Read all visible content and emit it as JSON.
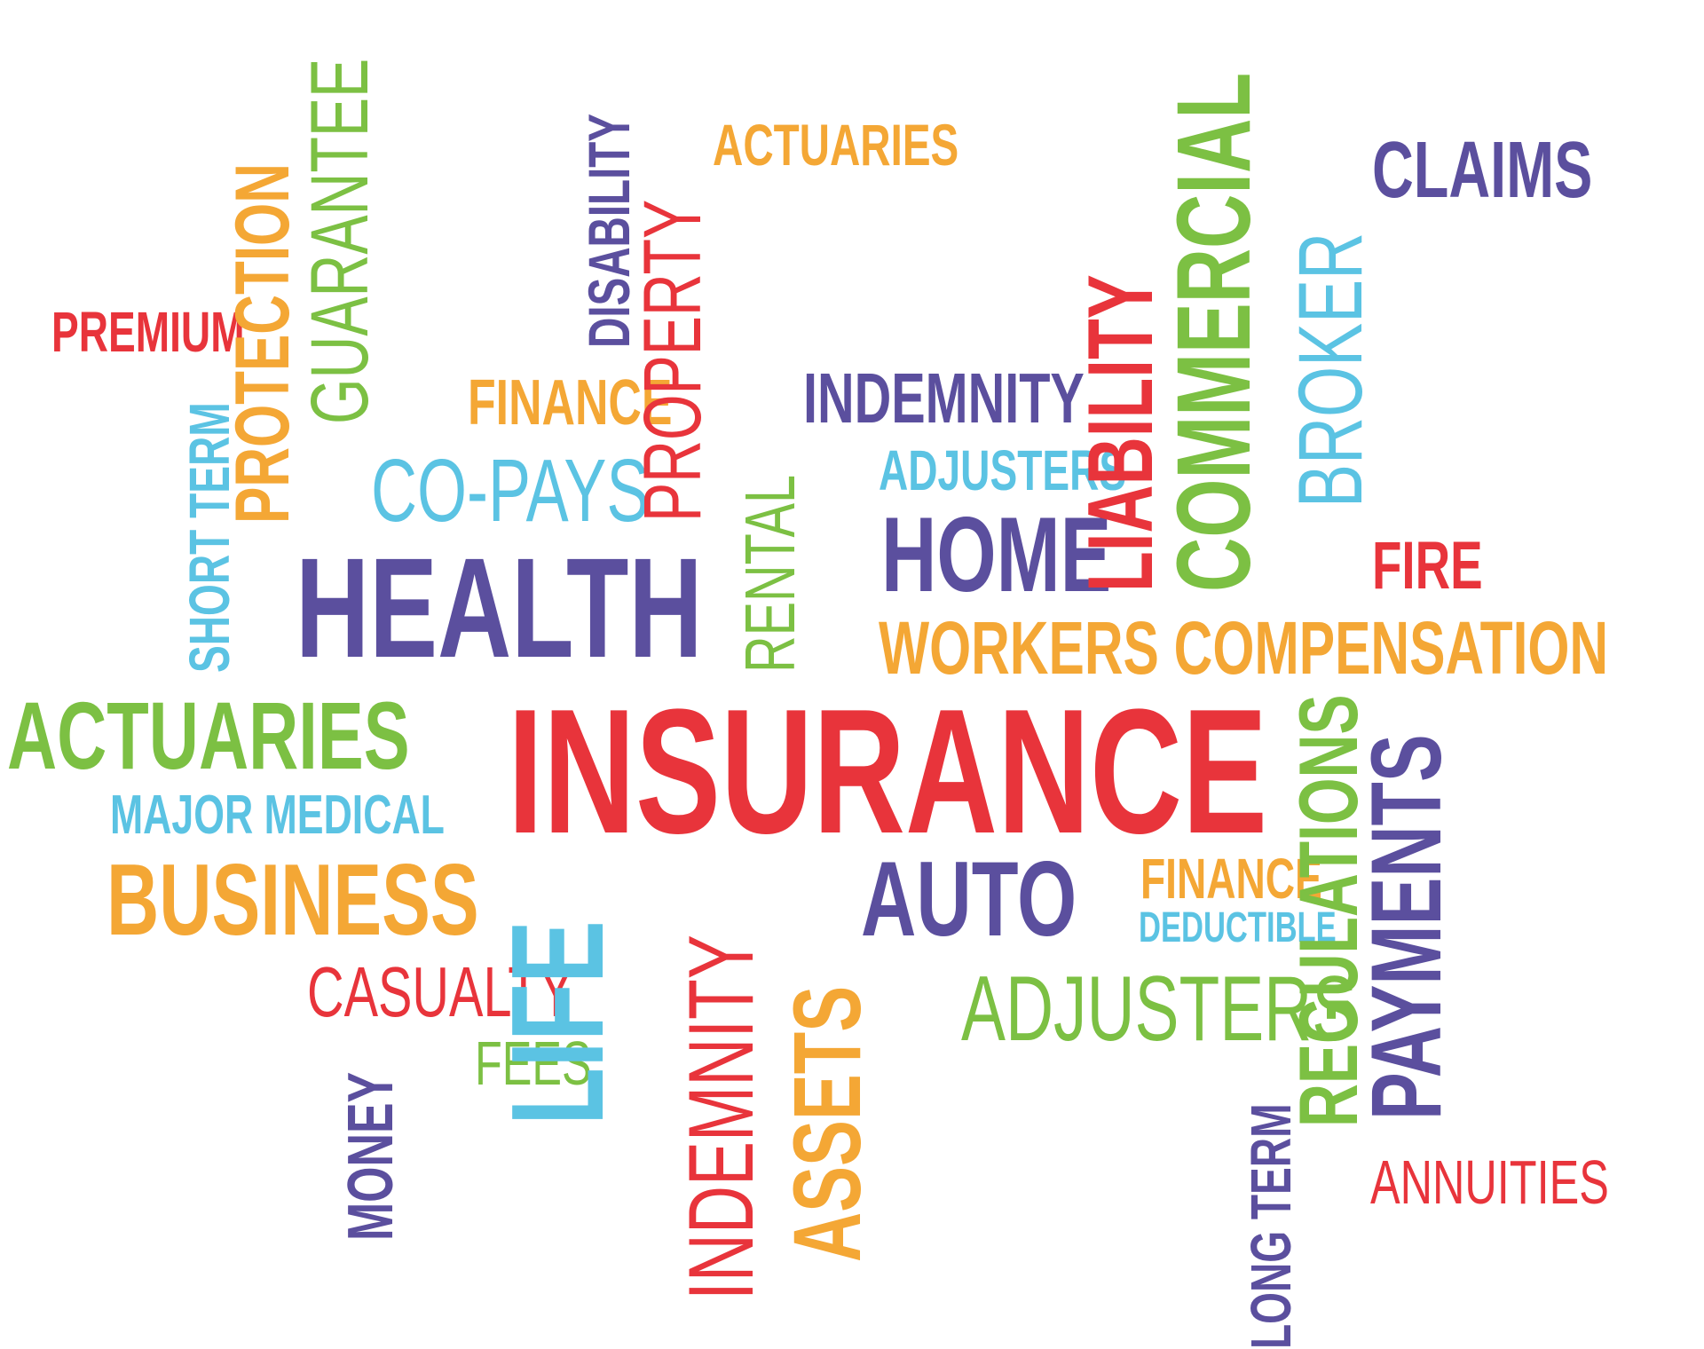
{
  "colors": {
    "red": "#e8343b",
    "purple": "#5b4f9e",
    "orange": "#f4a735",
    "green": "#7cc043",
    "blue": "#5bc3e3"
  },
  "words": [
    {
      "text": "INSURANCE",
      "color": "red"
    },
    {
      "text": "HEALTH",
      "color": "purple"
    },
    {
      "text": "HOME",
      "color": "purple"
    },
    {
      "text": "AUTO",
      "color": "purple"
    },
    {
      "text": "CLAIMS",
      "color": "purple"
    },
    {
      "text": "INDEMNITY",
      "color": "purple"
    },
    {
      "text": "PREMIUM",
      "color": "red"
    },
    {
      "text": "FINANCE",
      "color": "orange"
    },
    {
      "text": "ACTUARIES",
      "color": "orange"
    },
    {
      "text": "CO-PAYS",
      "color": "blue"
    },
    {
      "text": "ADJUSTERS",
      "color": "blue"
    },
    {
      "text": "FIRE",
      "color": "red"
    },
    {
      "text": "WORKERS COMPENSATION",
      "color": "orange"
    },
    {
      "text": "ACTUARIES",
      "color": "green"
    },
    {
      "text": "MAJOR MEDICAL",
      "color": "blue"
    },
    {
      "text": "BUSINESS",
      "color": "orange"
    },
    {
      "text": "CASUALTY",
      "color": "red"
    },
    {
      "text": "FEES",
      "color": "green"
    },
    {
      "text": "FINANCE",
      "color": "orange"
    },
    {
      "text": "DEDUCTIBLE",
      "color": "blue"
    },
    {
      "text": "ADJUSTERS",
      "color": "green"
    },
    {
      "text": "ANNUITIES",
      "color": "red"
    },
    {
      "text": "SHORT TERM",
      "color": "blue"
    },
    {
      "text": "PROTECTION",
      "color": "orange"
    },
    {
      "text": "GUARANTEE",
      "color": "green"
    },
    {
      "text": "DISABILITY",
      "color": "purple"
    },
    {
      "text": "PROPERTY",
      "color": "red"
    },
    {
      "text": "RENTAL",
      "color": "green"
    },
    {
      "text": "LIABILITY",
      "color": "red"
    },
    {
      "text": "COMMERCIAL",
      "color": "green"
    },
    {
      "text": "BROKER",
      "color": "blue"
    },
    {
      "text": "LIFE",
      "color": "blue"
    },
    {
      "text": "INDEMNITY",
      "color": "red"
    },
    {
      "text": "ASSETS",
      "color": "orange"
    },
    {
      "text": "MONEY",
      "color": "purple"
    },
    {
      "text": "LONG TERM",
      "color": "purple"
    },
    {
      "text": "REGULATIONS",
      "color": "green"
    },
    {
      "text": "PAYMENTS",
      "color": "purple"
    }
  ]
}
